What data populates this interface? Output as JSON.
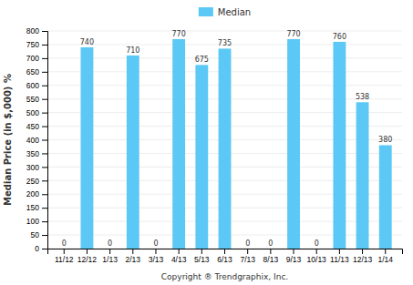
{
  "chart_data": {
    "type": "bar",
    "categories": [
      "11/12",
      "12/12",
      "1/13",
      "2/13",
      "3/13",
      "4/13",
      "5/13",
      "6/13",
      "7/13",
      "8/13",
      "9/13",
      "10/13",
      "11/13",
      "12/13",
      "1/14"
    ],
    "series": [
      {
        "name": "Median",
        "color": "#5BC8F5",
        "values": [
          0,
          740,
          0,
          710,
          0,
          770,
          675,
          735,
          0,
          0,
          770,
          0,
          760,
          538,
          380
        ]
      }
    ],
    "xlabel": "Copyright ® Trendgraphix, Inc.",
    "ylabel": "Median Price (in $,000) %",
    "ylim": [
      0,
      800
    ],
    "yticks": [
      0,
      50,
      100,
      150,
      200,
      250,
      300,
      350,
      400,
      450,
      500,
      550,
      600,
      650,
      700,
      750,
      800
    ],
    "grid": true,
    "legend": "top",
    "data_labels": true
  }
}
